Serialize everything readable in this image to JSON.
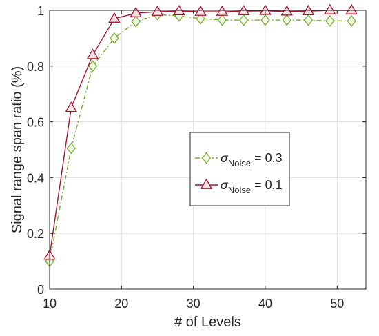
{
  "chart_data": {
    "type": "line",
    "xlabel": "# of Levels",
    "ylabel": "Signal range span ratio (%)",
    "xlim": [
      10,
      54
    ],
    "ylim": [
      0,
      1
    ],
    "xticks": [
      10,
      20,
      30,
      40,
      50
    ],
    "yticks": [
      0,
      0.2,
      0.4,
      0.6,
      0.8,
      1
    ],
    "ytick_labels": [
      "0",
      "0.2",
      "0.4",
      "0.6",
      "0.8",
      "1"
    ],
    "grid": true,
    "legend_position": "center-right",
    "series": [
      {
        "name": "σNoise = 0.3",
        "legend_symbol": "σ",
        "legend_subscript": "Noise",
        "legend_value": " = 0.3",
        "marker": "diamond",
        "line_style": "dash-dot",
        "color": "#77ac30",
        "marker_fill": "#eef7e3",
        "x": [
          10,
          13,
          16,
          19,
          22,
          25,
          28,
          31,
          34,
          37,
          40,
          43,
          46,
          49,
          52
        ],
        "values": [
          0.1,
          0.505,
          0.8,
          0.9,
          0.96,
          0.985,
          0.98,
          0.97,
          0.965,
          0.965,
          0.965,
          0.965,
          0.965,
          0.962,
          0.962
        ]
      },
      {
        "name": "σNoise = 0.1",
        "legend_symbol": "σ",
        "legend_subscript": "Noise",
        "legend_value": " = 0.1",
        "marker": "triangle",
        "line_style": "solid",
        "color": "#a2142f",
        "marker_fill": "#fde2e4",
        "x": [
          10,
          13,
          16,
          19,
          22,
          25,
          28,
          31,
          34,
          37,
          40,
          43,
          46,
          49,
          52
        ],
        "values": [
          0.12,
          0.65,
          0.84,
          0.97,
          0.99,
          0.995,
          0.997,
          0.995,
          0.995,
          0.997,
          0.998,
          0.996,
          0.997,
          1.0,
          1.0
        ]
      }
    ]
  }
}
